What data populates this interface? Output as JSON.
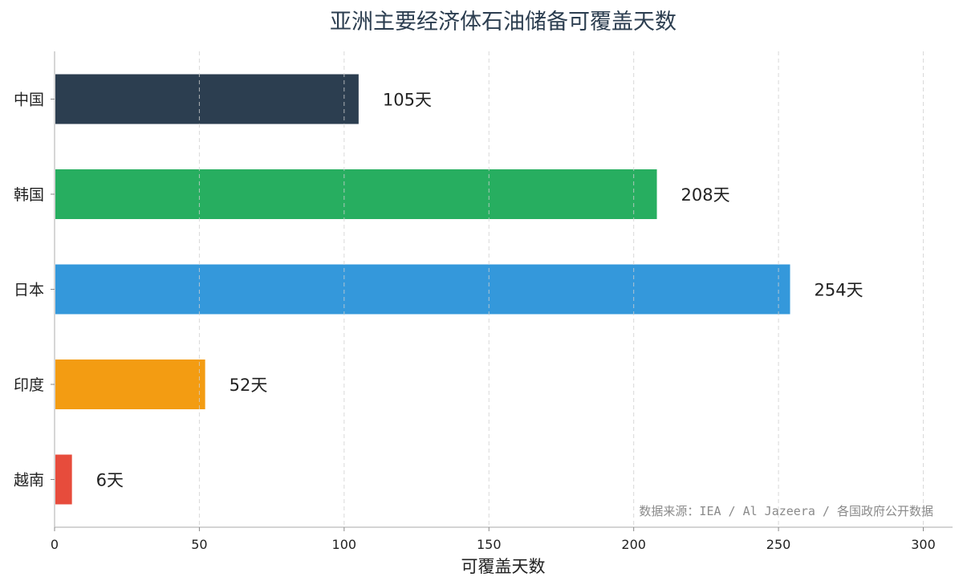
{
  "chart_data": {
    "type": "bar",
    "orientation": "horizontal",
    "title": "亚洲主要经济体石油储备可覆盖天数",
    "xlabel": "可覆盖天数",
    "ylabel": "",
    "categories": [
      "中国",
      "韩国",
      "日本",
      "印度",
      "越南"
    ],
    "values": [
      105,
      208,
      254,
      52,
      6
    ],
    "value_labels": [
      "105天",
      "208天",
      "254天",
      "52天",
      "6天"
    ],
    "colors": [
      "#2c3e50",
      "#27ae60",
      "#3498db",
      "#f39c12",
      "#e74c3c"
    ],
    "xlim": [
      0,
      300
    ],
    "xticks": [
      "0",
      "50",
      "100",
      "150",
      "200",
      "250",
      "300"
    ],
    "grid": "x-dashed",
    "legend": "none",
    "source_note": "数据来源：IEA / Al Jazeera / 各国政府公开数据"
  }
}
